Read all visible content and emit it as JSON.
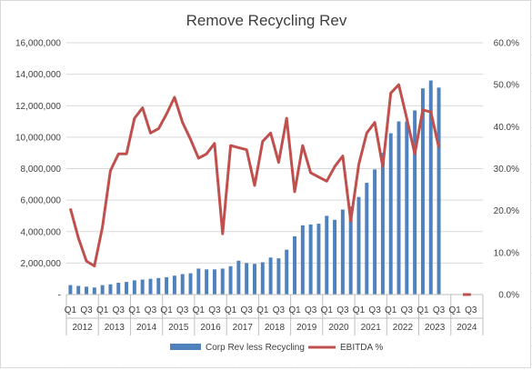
{
  "chart_data": {
    "type": "bar+line",
    "title": "Remove Recycling Rev",
    "categories": [
      "2012 Q1",
      "2012 Q2",
      "2012 Q3",
      "2012 Q4",
      "2013 Q1",
      "2013 Q2",
      "2013 Q3",
      "2013 Q4",
      "2014 Q1",
      "2014 Q2",
      "2014 Q3",
      "2014 Q4",
      "2015 Q1",
      "2015 Q2",
      "2015 Q3",
      "2015 Q4",
      "2016 Q1",
      "2016 Q2",
      "2016 Q3",
      "2016 Q4",
      "2017 Q1",
      "2017 Q2",
      "2017 Q3",
      "2017 Q4",
      "2018 Q1",
      "2018 Q2",
      "2018 Q3",
      "2018 Q4",
      "2019 Q1",
      "2019 Q2",
      "2019 Q3",
      "2019 Q4",
      "2020 Q1",
      "2020 Q2",
      "2020 Q3",
      "2020 Q4",
      "2021 Q1",
      "2021 Q2",
      "2021 Q3",
      "2021 Q4",
      "2022 Q1",
      "2022 Q2",
      "2022 Q3",
      "2022 Q4",
      "2023 Q1",
      "2023 Q2",
      "2023 Q3",
      "2023 Q4",
      "2024 Q1",
      "2024 Q2",
      "2024 Q3",
      "2024 Q4"
    ],
    "years": [
      "2012",
      "2013",
      "2014",
      "2015",
      "2016",
      "2017",
      "2018",
      "2019",
      "2020",
      "2021",
      "2022",
      "2023",
      "2024"
    ],
    "quarter_tick_labels": [
      "Q1",
      "Q3"
    ],
    "series": [
      {
        "name": "Corp Rev less Recycling",
        "kind": "bar",
        "axis": "left",
        "color": "#4f81bd",
        "values": [
          600000,
          550000,
          500000,
          450000,
          600000,
          650000,
          750000,
          800000,
          900000,
          950000,
          1000000,
          1050000,
          1100000,
          1200000,
          1300000,
          1350000,
          1650000,
          1600000,
          1600000,
          1650000,
          1800000,
          2150000,
          2000000,
          1950000,
          2050000,
          2350000,
          2300000,
          2850000,
          3700000,
          4400000,
          4450000,
          4500000,
          5000000,
          4750000,
          5400000,
          5600000,
          6200000,
          7100000,
          7950000,
          9000000,
          10250000,
          11000000,
          11000000,
          11700000,
          13100000,
          13600000,
          13150000,
          null,
          null,
          null,
          null,
          null
        ]
      },
      {
        "name": "EBITDA %",
        "kind": "line",
        "axis": "right",
        "color": "#c0504d",
        "values": [
          20.5,
          13.5,
          8.0,
          6.8,
          16.0,
          29.5,
          33.5,
          33.5,
          42.0,
          44.5,
          38.5,
          39.5,
          43.0,
          47.0,
          41.0,
          37.0,
          32.5,
          33.5,
          36.0,
          14.5,
          35.5,
          35.0,
          34.5,
          26.0,
          36.5,
          38.5,
          31.5,
          42.0,
          24.5,
          35.5,
          29.0,
          28.0,
          27.0,
          30.5,
          33.0,
          17.5,
          31.0,
          38.5,
          41.0,
          30.5,
          48.0,
          50.0,
          42.0,
          33.5,
          44.0,
          43.5,
          35.0,
          null,
          null,
          0.0,
          0.0,
          null
        ]
      }
    ],
    "y_left": {
      "ylim": [
        0,
        16000000
      ],
      "ticks": [
        "-",
        "2,000,000",
        "4,000,000",
        "6,000,000",
        "8,000,000",
        "10,000,000",
        "12,000,000",
        "14,000,000",
        "16,000,000"
      ]
    },
    "y_right": {
      "ylim": [
        0,
        60
      ],
      "ticks": [
        "0.0%",
        "10.0%",
        "20.0%",
        "30.0%",
        "40.0%",
        "50.0%",
        "60.0%"
      ]
    },
    "grid": "horizontal",
    "legend": {
      "position": "bottom",
      "entries": [
        "Corp Rev less Recycling",
        "EBITDA %"
      ]
    }
  }
}
